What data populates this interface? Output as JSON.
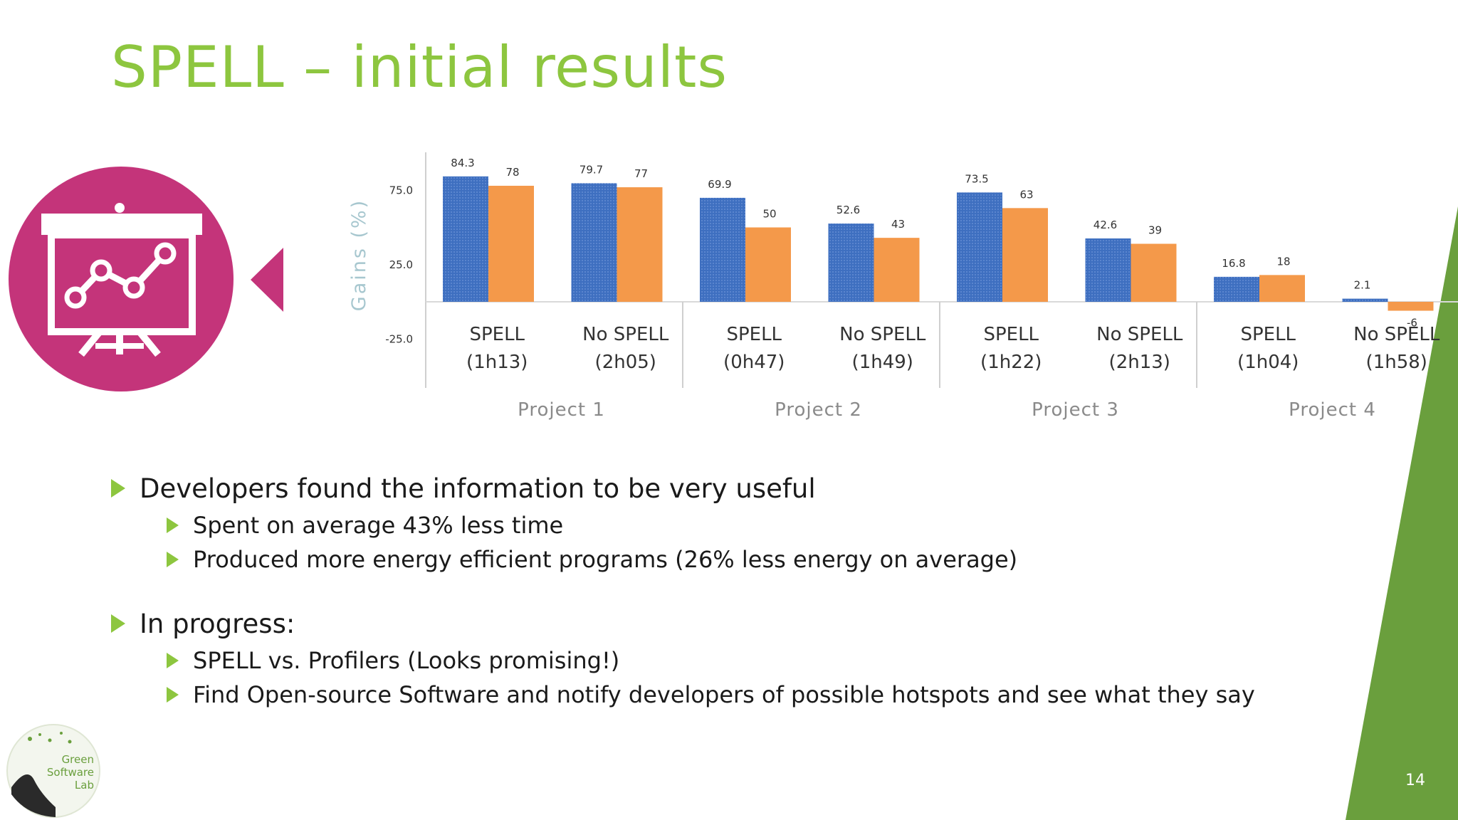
{
  "slide": {
    "title": "SPELL – initial results",
    "page_number": "14"
  },
  "logo": {
    "lines": [
      "Green",
      "Software",
      "Lab"
    ]
  },
  "bullets": [
    {
      "text": "Developers found the information to be very useful",
      "sub": [
        "Spent on average 43% less time",
        "Produced more energy efficient programs (26% less energy on average)"
      ]
    },
    {
      "text": "In progress:",
      "sub": [
        "SPELL vs. Profilers (Looks promising!)",
        "Find Open-source Software and notify developers of possible hotspots and see what they say"
      ]
    }
  ],
  "colors": {
    "title": "#8dc63f",
    "accent_green": "#6a9f3d",
    "icon_circle": "#c4347a",
    "series_blue": "#3e6fc0",
    "series_orange": "#f4994a"
  },
  "chart_data": {
    "type": "bar",
    "ylabel": "Gains (%)",
    "yticks": [
      "75.0",
      "25.0",
      "-25.0"
    ],
    "ytick_values": [
      75,
      25,
      -25
    ],
    "ylim": [
      -25,
      90
    ],
    "grid": false,
    "legend": "none",
    "categories": [
      [
        "SPELL",
        "(1h13)"
      ],
      [
        "No SPELL",
        "(2h05)"
      ],
      [
        "SPELL",
        "(0h47)"
      ],
      [
        "No SPELL",
        "(1h49)"
      ],
      [
        "SPELL",
        "(1h22)"
      ],
      [
        "No SPELL",
        "(2h13)"
      ],
      [
        "SPELL",
        "(1h04)"
      ],
      [
        "No SPELL",
        "(1h58)"
      ]
    ],
    "groups": [
      "Project 1",
      "Project 2",
      "Project 3",
      "Project 4"
    ],
    "series": [
      {
        "values": [
          84.3,
          79.7,
          69.9,
          52.6,
          73.5,
          42.6,
          16.8,
          2.1
        ],
        "labels": [
          "84.3",
          "79.7",
          "69.9",
          "52.6",
          "73.5",
          "42.6",
          "16.8",
          "2.1"
        ]
      },
      {
        "values": [
          78,
          77,
          50,
          43,
          63,
          39,
          18,
          -6
        ],
        "labels": [
          "78",
          "77",
          "50",
          "43",
          "63",
          "39",
          "18",
          "-6"
        ]
      }
    ]
  }
}
